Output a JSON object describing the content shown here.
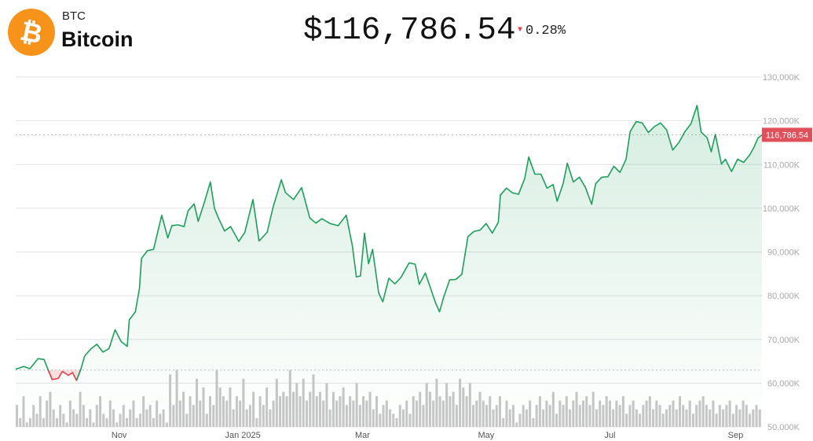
{
  "header": {
    "ticker": "BTC",
    "name": "Bitcoin",
    "price": "$116,786.54",
    "change": "0.28%",
    "change_direction": "down",
    "logo_icon": "bitcoin-logo-icon",
    "logo_glyph": "₿"
  },
  "colors": {
    "up": "#1e9e5a",
    "down": "#e0424b",
    "logo": "#f7931a",
    "volume": "#c6c6c6",
    "grid": "#e2e2e2"
  },
  "chart_data": {
    "type": "area",
    "title": "",
    "xlabel": "",
    "ylabel": "",
    "ylim": [
      50000,
      130000
    ],
    "y_ticks": [
      "50,000K",
      "60,000K",
      "70,000K",
      "80,000K",
      "90,000K",
      "100,000K",
      "110,000K",
      "120,000K",
      "130,000K"
    ],
    "x_ticks": [
      "Nov",
      "Jan 2025",
      "Mar",
      "May",
      "Jul",
      "Sep"
    ],
    "x_tick_dates": [
      "2024-11-01",
      "2025-01-01",
      "2025-03-01",
      "2025-05-01",
      "2025-07-01",
      "2025-09-01"
    ],
    "x_range": [
      "2024-09-11",
      "2025-09-14"
    ],
    "baseline": 63000,
    "current_price_label": "116,786.54",
    "current_price": 116786.54,
    "grid": true,
    "series": [
      {
        "values": [
          [
            "2024-09-11",
            63200
          ],
          [
            "2024-09-15",
            63800
          ],
          [
            "2024-09-18",
            63300
          ],
          [
            "2024-09-22",
            65600
          ],
          [
            "2024-09-25",
            65400
          ],
          [
            "2024-09-27",
            63000
          ],
          [
            "2024-09-29",
            60800
          ],
          [
            "2024-10-02",
            61100
          ],
          [
            "2024-10-04",
            62700
          ],
          [
            "2024-10-07",
            61800
          ],
          [
            "2024-10-09",
            62400
          ],
          [
            "2024-10-11",
            60600
          ],
          [
            "2024-10-13",
            63000
          ],
          [
            "2024-10-15",
            66200
          ],
          [
            "2024-10-18",
            67800
          ],
          [
            "2024-10-21",
            68900
          ],
          [
            "2024-10-24",
            67100
          ],
          [
            "2024-10-27",
            67900
          ],
          [
            "2024-10-30",
            72200
          ],
          [
            "2024-11-02",
            69500
          ],
          [
            "2024-11-05",
            68400
          ],
          [
            "2024-11-06",
            74500
          ],
          [
            "2024-11-09",
            76300
          ],
          [
            "2024-11-11",
            81600
          ],
          [
            "2024-11-12",
            88500
          ],
          [
            "2024-11-15",
            90300
          ],
          [
            "2024-11-18",
            90600
          ],
          [
            "2024-11-22",
            98400
          ],
          [
            "2024-11-25",
            93200
          ],
          [
            "2024-11-27",
            96000
          ],
          [
            "2024-11-30",
            96200
          ],
          [
            "2024-12-03",
            95800
          ],
          [
            "2024-12-05",
            99400
          ],
          [
            "2024-12-08",
            101000
          ],
          [
            "2024-12-10",
            97000
          ],
          [
            "2024-12-13",
            101300
          ],
          [
            "2024-12-16",
            106000
          ],
          [
            "2024-12-18",
            100000
          ],
          [
            "2024-12-20",
            97700
          ],
          [
            "2024-12-23",
            94800
          ],
          [
            "2024-12-26",
            95800
          ],
          [
            "2024-12-30",
            92400
          ],
          [
            "2025-01-02",
            94500
          ],
          [
            "2025-01-06",
            102000
          ],
          [
            "2025-01-09",
            92500
          ],
          [
            "2025-01-13",
            94500
          ],
          [
            "2025-01-16",
            100400
          ],
          [
            "2025-01-20",
            106500
          ],
          [
            "2025-01-22",
            103600
          ],
          [
            "2025-01-26",
            102000
          ],
          [
            "2025-01-30",
            104700
          ],
          [
            "2025-02-03",
            97800
          ],
          [
            "2025-02-06",
            96600
          ],
          [
            "2025-02-09",
            97600
          ],
          [
            "2025-02-13",
            96500
          ],
          [
            "2025-02-17",
            96000
          ],
          [
            "2025-02-21",
            98400
          ],
          [
            "2025-02-24",
            91500
          ],
          [
            "2025-02-26",
            84300
          ],
          [
            "2025-02-28",
            84500
          ],
          [
            "2025-03-02",
            94300
          ],
          [
            "2025-03-04",
            87300
          ],
          [
            "2025-03-06",
            90600
          ],
          [
            "2025-03-09",
            80600
          ],
          [
            "2025-03-11",
            78600
          ],
          [
            "2025-03-14",
            84000
          ],
          [
            "2025-03-17",
            82700
          ],
          [
            "2025-03-20",
            84200
          ],
          [
            "2025-03-24",
            87500
          ],
          [
            "2025-03-27",
            87200
          ],
          [
            "2025-03-29",
            82600
          ],
          [
            "2025-04-01",
            85200
          ],
          [
            "2025-04-03",
            82500
          ],
          [
            "2025-04-06",
            78400
          ],
          [
            "2025-04-08",
            76300
          ],
          [
            "2025-04-10",
            79600
          ],
          [
            "2025-04-13",
            83600
          ],
          [
            "2025-04-16",
            83700
          ],
          [
            "2025-04-19",
            84900
          ],
          [
            "2025-04-22",
            93500
          ],
          [
            "2025-04-25",
            94700
          ],
          [
            "2025-04-28",
            95000
          ],
          [
            "2025-05-01",
            96500
          ],
          [
            "2025-05-04",
            94300
          ],
          [
            "2025-05-07",
            96800
          ],
          [
            "2025-05-08",
            103000
          ],
          [
            "2025-05-11",
            104600
          ],
          [
            "2025-05-14",
            103500
          ],
          [
            "2025-05-17",
            103200
          ],
          [
            "2025-05-20",
            106800
          ],
          [
            "2025-05-22",
            111700
          ],
          [
            "2025-05-25",
            107800
          ],
          [
            "2025-05-28",
            107800
          ],
          [
            "2025-05-31",
            104600
          ],
          [
            "2025-06-03",
            105400
          ],
          [
            "2025-06-05",
            101600
          ],
          [
            "2025-06-08",
            105700
          ],
          [
            "2025-06-10",
            110300
          ],
          [
            "2025-06-13",
            106000
          ],
          [
            "2025-06-16",
            107100
          ],
          [
            "2025-06-19",
            104700
          ],
          [
            "2025-06-22",
            100900
          ],
          [
            "2025-06-24",
            105600
          ],
          [
            "2025-06-27",
            107100
          ],
          [
            "2025-06-30",
            107200
          ],
          [
            "2025-07-03",
            109600
          ],
          [
            "2025-07-06",
            108200
          ],
          [
            "2025-07-09",
            111200
          ],
          [
            "2025-07-11",
            117500
          ],
          [
            "2025-07-14",
            119800
          ],
          [
            "2025-07-17",
            119500
          ],
          [
            "2025-07-20",
            117300
          ],
          [
            "2025-07-23",
            118700
          ],
          [
            "2025-07-26",
            119500
          ],
          [
            "2025-07-29",
            117900
          ],
          [
            "2025-08-01",
            113300
          ],
          [
            "2025-08-04",
            115000
          ],
          [
            "2025-08-07",
            117500
          ],
          [
            "2025-08-10",
            119300
          ],
          [
            "2025-08-13",
            123500
          ],
          [
            "2025-08-15",
            117400
          ],
          [
            "2025-08-18",
            116100
          ],
          [
            "2025-08-20",
            112900
          ],
          [
            "2025-08-22",
            116900
          ],
          [
            "2025-08-25",
            110100
          ],
          [
            "2025-08-27",
            111200
          ],
          [
            "2025-08-30",
            108400
          ],
          [
            "2025-09-02",
            111200
          ],
          [
            "2025-09-05",
            110500
          ],
          [
            "2025-09-08",
            112200
          ],
          [
            "2025-09-10",
            113900
          ],
          [
            "2025-09-12",
            116000
          ],
          [
            "2025-09-14",
            116786.54
          ]
        ]
      }
    ],
    "volume": [
      55,
      52,
      57,
      51,
      52,
      55,
      53,
      57,
      52,
      56,
      58,
      54,
      52,
      55,
      53,
      51,
      56,
      54,
      53,
      58,
      55,
      52,
      54,
      51,
      55,
      57,
      53,
      52,
      56,
      54,
      51,
      53,
      55,
      52,
      54,
      56,
      52,
      53,
      57,
      54,
      55,
      52,
      56,
      53,
      54,
      51,
      62,
      55,
      63,
      56,
      58,
      53,
      57,
      55,
      61,
      56,
      59,
      53,
      57,
      55,
      63,
      59,
      57,
      56,
      59,
      54,
      57,
      56,
      61,
      54,
      55,
      58,
      52,
      57,
      55,
      59,
      54,
      56,
      61,
      57,
      58,
      57,
      63,
      58,
      60,
      57,
      61,
      56,
      58,
      62,
      57,
      58,
      56,
      60,
      54,
      58,
      56,
      57,
      59,
      55,
      57,
      56,
      60,
      55,
      57,
      56,
      58,
      54,
      57,
      53,
      55,
      56,
      54,
      53,
      52,
      55,
      54,
      56,
      53,
      57,
      56,
      58,
      55,
      60,
      58,
      56,
      61,
      57,
      56,
      60,
      57,
      58,
      55,
      61,
      59,
      57,
      60,
      55,
      56,
      58,
      56,
      55,
      57,
      54,
      55,
      57,
      52,
      56,
      54,
      55,
      51,
      53,
      55,
      54,
      56,
      52,
      55,
      57,
      54,
      56,
      55,
      58,
      53,
      56,
      55,
      57,
      54,
      56,
      58,
      55,
      56,
      57,
      55,
      58,
      54,
      56,
      55,
      57,
      56,
      54,
      56,
      55,
      57,
      53,
      55,
      56,
      54,
      53,
      55,
      56,
      57,
      54,
      56,
      55,
      53,
      54,
      55,
      56,
      54,
      57,
      55,
      54,
      56,
      53,
      55,
      56,
      57,
      55,
      54,
      56,
      53,
      55,
      54,
      55,
      56,
      53,
      55,
      54,
      56,
      55,
      53,
      54,
      55,
      54
    ]
  }
}
